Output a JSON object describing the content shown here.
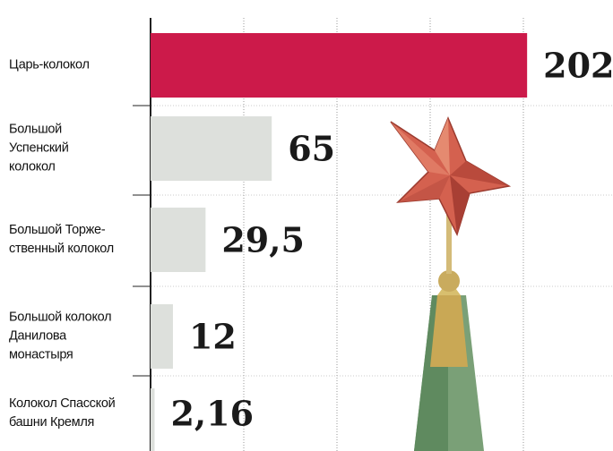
{
  "chart_data": {
    "type": "bar",
    "orientation": "horizontal",
    "categories": [
      "Царь-колокол",
      "Большой\nУспенский\nколокол",
      "Большой Торже-\nственный колокол",
      "Большой колокол\nДанилова\nмонастыря",
      "Колокол Спасской\nбашни Кремля"
    ],
    "values": [
      202,
      65,
      29.5,
      12,
      2.16
    ],
    "value_labels": [
      "202",
      "65",
      "29,5",
      "12",
      "2,16"
    ],
    "colors": [
      "#cc1a4a",
      "#dde0dc",
      "#dde0dc",
      "#dde0dc",
      "#dde0dc"
    ],
    "xlim": [
      0,
      200
    ],
    "xticks": [
      0,
      50,
      100,
      150,
      200
    ],
    "grid": true
  }
}
